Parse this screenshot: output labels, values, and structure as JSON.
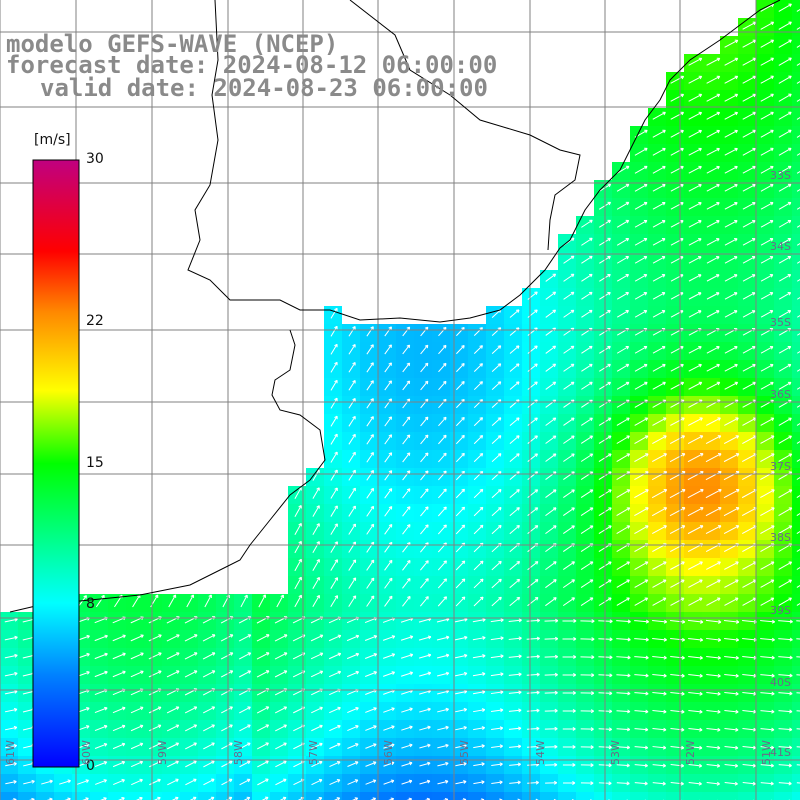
{
  "header": {
    "line1": "modelo GEFS-WAVE (NCEP)",
    "line2": "forecast date: 2024-08-12 06:00:00",
    "line3": "valid date: 2024-08-23 06:00:00"
  },
  "colorbar": {
    "unit": "[m/s]",
    "ticks": [
      {
        "label": "30",
        "value": 30
      },
      {
        "label": "22",
        "value": 22
      },
      {
        "label": "15",
        "value": 15
      },
      {
        "label": "8",
        "value": 8
      },
      {
        "label": "0",
        "value": 0
      }
    ],
    "min": 0,
    "max": 30,
    "colors": [
      "#0000ff",
      "#0090ff",
      "#00ffff",
      "#00ff00",
      "#ffff00",
      "#ff8800",
      "#ff0000",
      "#c00080"
    ]
  },
  "lon_labels": [
    "61W",
    "60W",
    "59W",
    "58W",
    "57W",
    "56W",
    "55W",
    "54W",
    "53W",
    "52W",
    "51W"
  ],
  "lat_labels": [
    "33S",
    "34S",
    "35S",
    "36S",
    "37S",
    "38S",
    "39S",
    "40S",
    "41S"
  ],
  "legend_colors": {
    "land": "#ffffff",
    "grid": "#808080",
    "arrow": "#ffffff",
    "coast": "#000000"
  }
}
